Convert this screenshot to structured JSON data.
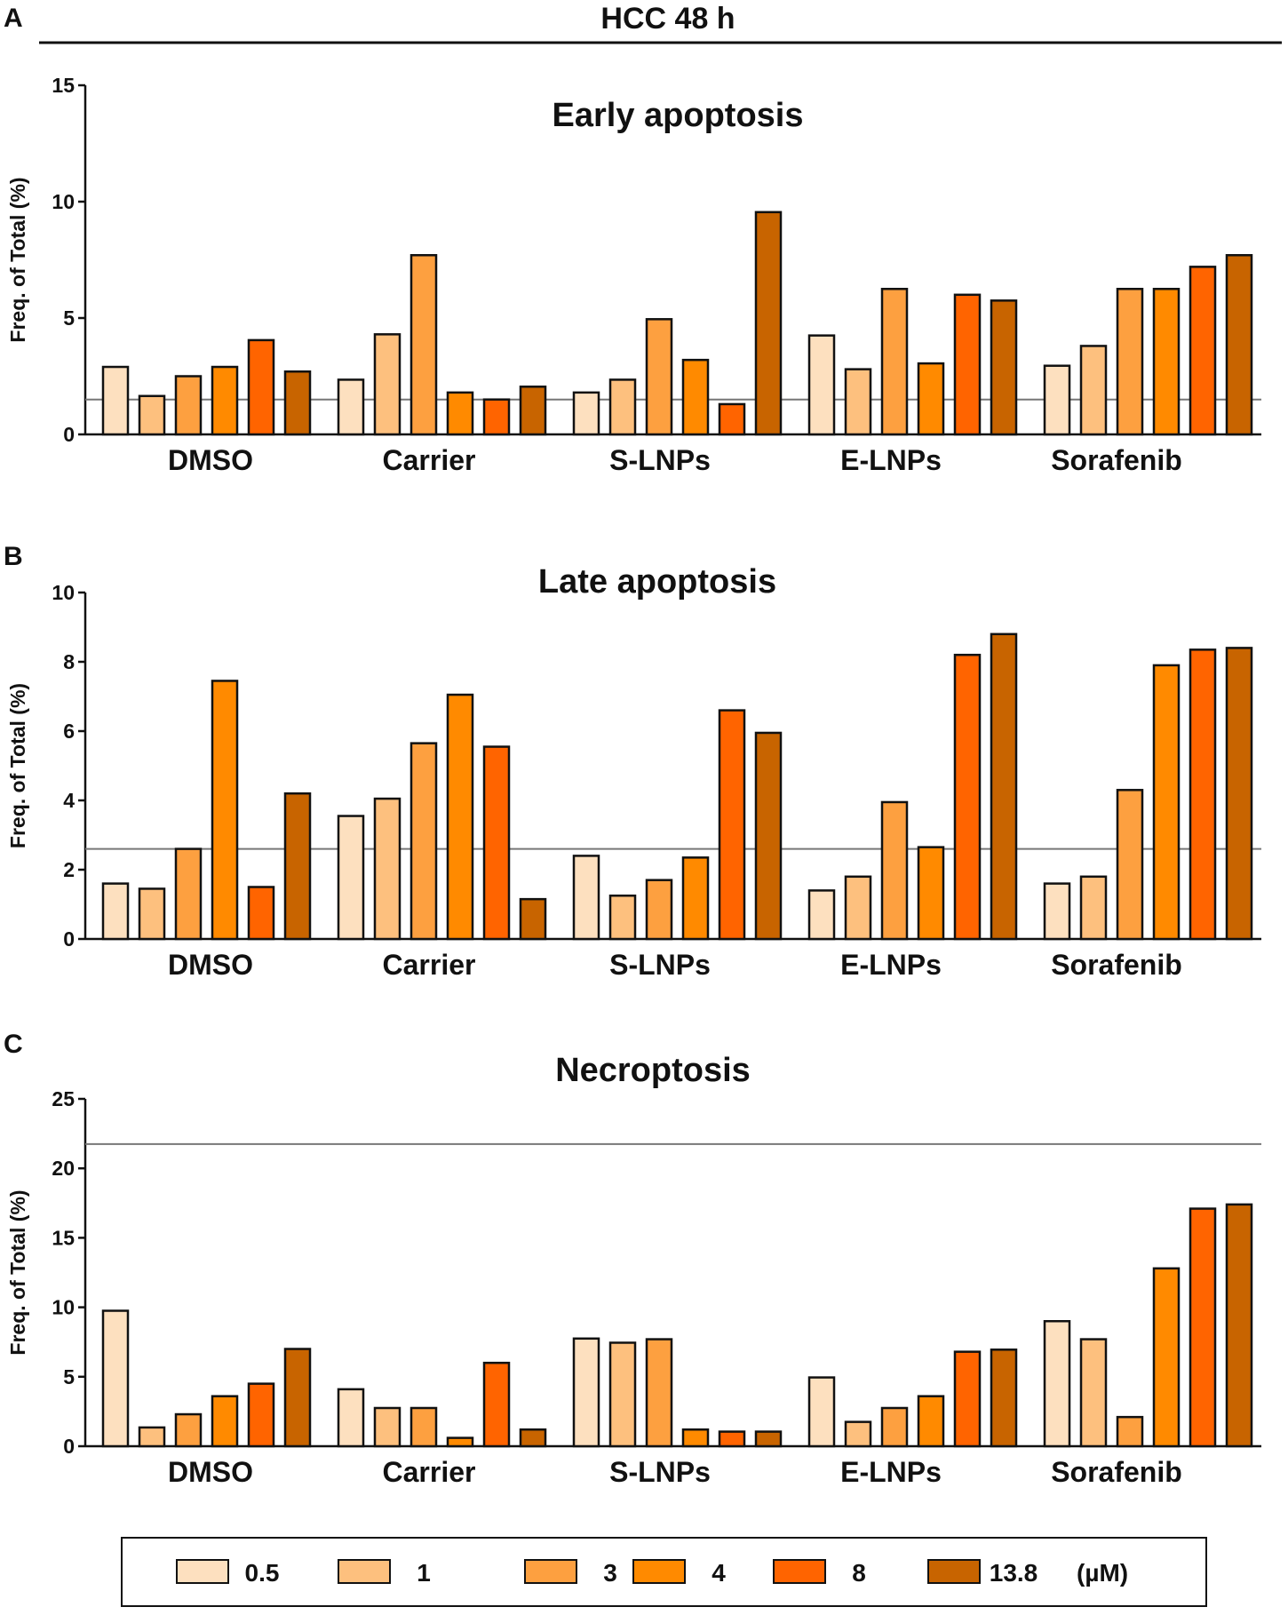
{
  "figure_title": "HCC 48 h",
  "legend": {
    "items": [
      "0.5",
      "1",
      "3",
      "4",
      "8",
      "13.8"
    ],
    "unit": "(µM)",
    "colors": [
      "#fde0bf",
      "#fdc07e",
      "#fda040",
      "#ff8a00",
      "#ff6400",
      "#c86400"
    ]
  },
  "chart_data": [
    {
      "panel": "A",
      "type": "bar",
      "title": "Early apoptosis",
      "ylabel": "Freq. of Total (%)",
      "ylim": [
        0,
        15
      ],
      "yticks": [
        0,
        5,
        10,
        15
      ],
      "reference_line": 1.5,
      "categories": [
        "DMSO",
        "Carrier",
        "S-LNPs",
        "E-LNPs",
        "Sorafenib"
      ],
      "series": [
        {
          "name": "0.5",
          "values": [
            2.9,
            2.35,
            1.8,
            4.25,
            2.95
          ]
        },
        {
          "name": "1",
          "values": [
            1.65,
            4.3,
            2.35,
            2.8,
            3.8
          ]
        },
        {
          "name": "3",
          "values": [
            2.5,
            7.7,
            4.95,
            6.25,
            6.25
          ]
        },
        {
          "name": "4",
          "values": [
            2.9,
            1.8,
            3.2,
            3.05,
            6.25
          ]
        },
        {
          "name": "8",
          "values": [
            4.05,
            1.5,
            1.3,
            6.0,
            7.2
          ]
        },
        {
          "name": "13.8",
          "values": [
            2.7,
            2.05,
            9.55,
            5.75,
            7.7
          ]
        }
      ]
    },
    {
      "panel": "B",
      "type": "bar",
      "title": "Late apoptosis",
      "ylabel": "Freq. of Total (%)",
      "ylim": [
        0,
        10
      ],
      "yticks": [
        0,
        2,
        4,
        6,
        8,
        10
      ],
      "reference_line": 2.6,
      "categories": [
        "DMSO",
        "Carrier",
        "S-LNPs",
        "E-LNPs",
        "Sorafenib"
      ],
      "series": [
        {
          "name": "0.5",
          "values": [
            1.6,
            3.55,
            2.4,
            1.4,
            1.6
          ]
        },
        {
          "name": "1",
          "values": [
            1.45,
            4.05,
            1.25,
            1.8,
            1.8
          ]
        },
        {
          "name": "3",
          "values": [
            2.6,
            5.65,
            1.7,
            3.95,
            4.3
          ]
        },
        {
          "name": "4",
          "values": [
            7.45,
            7.05,
            2.35,
            2.65,
            7.9
          ]
        },
        {
          "name": "8",
          "values": [
            1.5,
            5.55,
            6.6,
            8.2,
            8.35
          ]
        },
        {
          "name": "13.8",
          "values": [
            4.2,
            1.15,
            5.95,
            8.8,
            8.4
          ]
        }
      ]
    },
    {
      "panel": "C",
      "type": "bar",
      "title": "Necroptosis",
      "ylabel": "Freq. of Total (%)",
      "ylim": [
        0,
        25
      ],
      "yticks": [
        0,
        5,
        10,
        15,
        20,
        25
      ],
      "reference_line": 21.75,
      "categories": [
        "DMSO",
        "Carrier",
        "S-LNPs",
        "E-LNPs",
        "Sorafenib"
      ],
      "series": [
        {
          "name": "0.5",
          "values": [
            9.75,
            4.1,
            7.75,
            4.95,
            9.0
          ]
        },
        {
          "name": "1",
          "values": [
            1.35,
            2.75,
            7.45,
            1.75,
            7.7
          ]
        },
        {
          "name": "3",
          "values": [
            2.3,
            2.75,
            7.7,
            2.75,
            2.1
          ]
        },
        {
          "name": "4",
          "values": [
            3.6,
            0.6,
            1.2,
            3.6,
            12.8
          ]
        },
        {
          "name": "8",
          "values": [
            4.5,
            6.0,
            1.05,
            6.8,
            17.1
          ]
        },
        {
          "name": "13.8",
          "values": [
            7.0,
            1.2,
            1.05,
            6.95,
            17.4
          ]
        }
      ]
    }
  ]
}
